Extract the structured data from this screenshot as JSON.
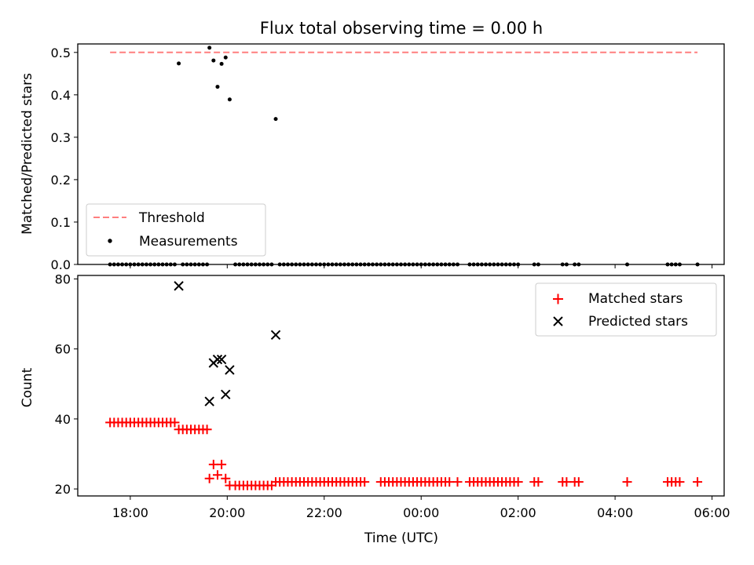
{
  "title": "Flux total observing time = 0.00 h",
  "chart_data": [
    {
      "type": "scatter",
      "ylabel": "Matched/Predicted stars",
      "ylim": [
        0,
        0.52
      ],
      "yticks": [
        "0.0",
        "0.1",
        "0.2",
        "0.3",
        "0.4",
        "0.5"
      ],
      "grid": false,
      "legend_position": "lower-left",
      "threshold": {
        "name": "Threshold",
        "y": 0.5,
        "x_range": [
          "17:35",
          "05:42"
        ],
        "color": "#ff7f7f"
      },
      "series": [
        {
          "name": "Measurements",
          "color": "#000000",
          "points": [
            [
              "19:00",
              0.474
            ],
            [
              "19:38",
              0.511
            ],
            [
              "19:43",
              0.481
            ],
            [
              "19:48",
              0.419
            ],
            [
              "19:53",
              0.473
            ],
            [
              "19:58",
              0.488
            ],
            [
              "20:03",
              0.389
            ],
            [
              "21:00",
              0.343
            ]
          ],
          "zero_times": [
            "17:35",
            "17:40",
            "17:45",
            "17:50",
            "17:55",
            "18:00",
            "18:05",
            "18:10",
            "18:15",
            "18:20",
            "18:25",
            "18:30",
            "18:35",
            "18:40",
            "18:45",
            "18:50",
            "18:55",
            "19:05",
            "19:10",
            "19:15",
            "19:20",
            "19:25",
            "19:30",
            "19:35",
            "20:10",
            "20:15",
            "20:20",
            "20:25",
            "20:30",
            "20:35",
            "20:40",
            "20:45",
            "20:50",
            "20:55",
            "21:05",
            "21:10",
            "21:15",
            "21:20",
            "21:25",
            "21:30",
            "21:35",
            "21:40",
            "21:45",
            "21:50",
            "21:55",
            "22:00",
            "22:05",
            "22:10",
            "22:15",
            "22:20",
            "22:25",
            "22:30",
            "22:35",
            "22:40",
            "22:45",
            "22:50",
            "22:55",
            "23:00",
            "23:05",
            "23:10",
            "23:15",
            "23:20",
            "23:25",
            "23:30",
            "23:35",
            "23:40",
            "23:45",
            "23:50",
            "23:55",
            "00:00",
            "00:05",
            "00:10",
            "00:15",
            "00:20",
            "00:25",
            "00:30",
            "00:35",
            "00:40",
            "00:45",
            "01:00",
            "01:05",
            "01:10",
            "01:15",
            "01:20",
            "01:25",
            "01:30",
            "01:35",
            "01:40",
            "01:45",
            "01:50",
            "01:55",
            "02:00",
            "02:20",
            "02:25",
            "02:55",
            "03:00",
            "03:10",
            "03:15",
            "04:15",
            "05:05",
            "05:10",
            "05:15",
            "05:20",
            "05:42"
          ]
        }
      ]
    },
    {
      "type": "scatter",
      "xlabel": "Time (UTC)",
      "ylabel": "Count",
      "ylim": [
        18,
        81
      ],
      "yticks": [
        "20",
        "40",
        "60",
        "80"
      ],
      "xlim": [
        "16:55",
        "06:15"
      ],
      "xticks": [
        "18:00",
        "20:00",
        "22:00",
        "00:00",
        "02:00",
        "04:00",
        "06:00"
      ],
      "grid": false,
      "legend_position": "upper-right",
      "series": [
        {
          "name": "Matched stars",
          "marker": "+",
          "color": "#ff0000",
          "segments": [
            {
              "from": "17:35",
              "to": "18:55",
              "y": 39
            },
            {
              "from": "19:00",
              "to": "19:35",
              "y": 37
            },
            {
              "from": "20:10",
              "to": "20:55",
              "y": 21
            }
          ],
          "points": [
            [
              "19:38",
              23
            ],
            [
              "19:43",
              27
            ],
            [
              "19:48",
              24
            ],
            [
              "19:53",
              27
            ],
            [
              "19:58",
              23
            ],
            [
              "20:03",
              21
            ],
            [
              "21:00",
              22
            ],
            [
              "21:05",
              22
            ],
            [
              "21:10",
              22
            ],
            [
              "21:15",
              22
            ],
            [
              "21:20",
              22
            ],
            [
              "21:25",
              22
            ],
            [
              "21:30",
              22
            ],
            [
              "21:35",
              22
            ],
            [
              "21:40",
              22
            ],
            [
              "21:45",
              22
            ],
            [
              "21:50",
              22
            ],
            [
              "21:55",
              22
            ],
            [
              "22:00",
              22
            ],
            [
              "22:05",
              22
            ],
            [
              "22:10",
              22
            ],
            [
              "22:15",
              22
            ],
            [
              "22:20",
              22
            ],
            [
              "22:25",
              22
            ],
            [
              "22:30",
              22
            ],
            [
              "22:35",
              22
            ],
            [
              "22:40",
              22
            ],
            [
              "22:45",
              22
            ],
            [
              "22:50",
              22
            ],
            [
              "23:10",
              22
            ],
            [
              "23:15",
              22
            ],
            [
              "23:20",
              22
            ],
            [
              "23:25",
              22
            ],
            [
              "23:30",
              22
            ],
            [
              "23:35",
              22
            ],
            [
              "23:40",
              22
            ],
            [
              "23:45",
              22
            ],
            [
              "23:50",
              22
            ],
            [
              "23:55",
              22
            ],
            [
              "00:00",
              22
            ],
            [
              "00:05",
              22
            ],
            [
              "00:10",
              22
            ],
            [
              "00:15",
              22
            ],
            [
              "00:20",
              22
            ],
            [
              "00:25",
              22
            ],
            [
              "00:30",
              22
            ],
            [
              "00:35",
              22
            ],
            [
              "00:45",
              22
            ],
            [
              "01:00",
              22
            ],
            [
              "01:05",
              22
            ],
            [
              "01:10",
              22
            ],
            [
              "01:15",
              22
            ],
            [
              "01:20",
              22
            ],
            [
              "01:25",
              22
            ],
            [
              "01:30",
              22
            ],
            [
              "01:35",
              22
            ],
            [
              "01:40",
              22
            ],
            [
              "01:45",
              22
            ],
            [
              "01:50",
              22
            ],
            [
              "01:55",
              22
            ],
            [
              "02:00",
              22
            ],
            [
              "02:20",
              22
            ],
            [
              "02:25",
              22
            ],
            [
              "02:55",
              22
            ],
            [
              "03:00",
              22
            ],
            [
              "03:10",
              22
            ],
            [
              "03:15",
              22
            ],
            [
              "04:15",
              22
            ],
            [
              "05:05",
              22
            ],
            [
              "05:10",
              22
            ],
            [
              "05:15",
              22
            ],
            [
              "05:20",
              22
            ],
            [
              "05:42",
              22
            ]
          ]
        },
        {
          "name": "Predicted stars",
          "marker": "x",
          "color": "#000000",
          "points": [
            [
              "19:00",
              78
            ],
            [
              "19:38",
              45
            ],
            [
              "19:43",
              56
            ],
            [
              "19:48",
              57
            ],
            [
              "19:53",
              57
            ],
            [
              "19:58",
              47
            ],
            [
              "20:03",
              54
            ],
            [
              "21:00",
              64
            ]
          ]
        }
      ]
    }
  ]
}
